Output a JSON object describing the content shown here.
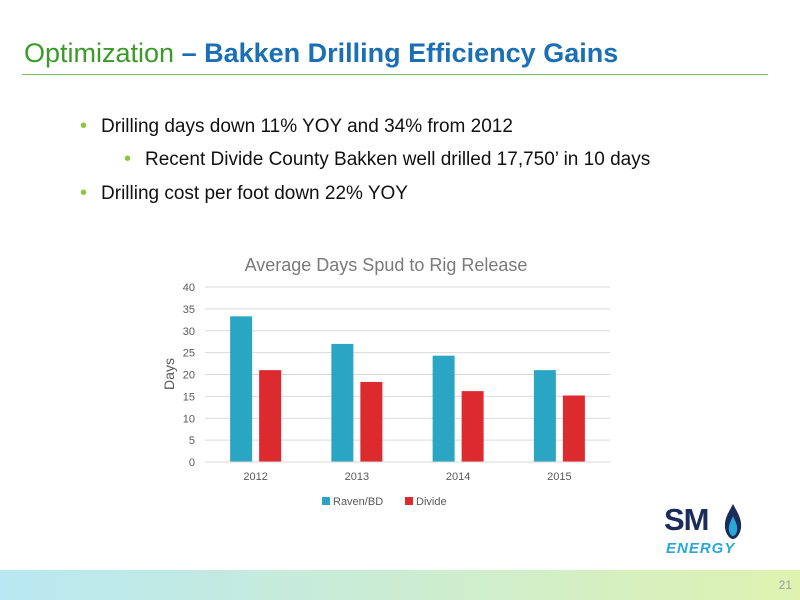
{
  "slide": {
    "title_part1": "Optimization",
    "title_part2": " – Bakken Drilling Efficiency Gains",
    "bullets": [
      "Drilling days down 11% YOY and 34% from 2012",
      "Recent Divide County Bakken well drilled 17,750’ in 10 days",
      "Drilling cost per foot down 22% YOY"
    ],
    "page_number": "21",
    "logo_line1": "SM",
    "logo_line2": "ENERGY",
    "bullet_glyph": "•"
  },
  "chart_data": {
    "type": "bar",
    "title": "Average Days Spud to Rig Release",
    "ylabel": "Days",
    "xlabel": "",
    "categories": [
      "2012",
      "2013",
      "2014",
      "2015"
    ],
    "series": [
      {
        "name": "Raven/BD",
        "values": [
          33.3,
          27.0,
          24.3,
          21.0
        ],
        "color": "#2aa6c4"
      },
      {
        "name": "Divide",
        "values": [
          21.0,
          18.3,
          16.2,
          15.2
        ],
        "color": "#dc2a2f"
      }
    ],
    "ylim": [
      0,
      40
    ],
    "yticks": [
      0,
      5,
      10,
      15,
      20,
      25,
      30,
      35,
      40
    ],
    "grid": true,
    "legend_position": "bottom"
  },
  "colors": {
    "title_green": "#3a9a2a",
    "title_blue": "#1a6fb5",
    "bullet_green": "#8cc63f"
  }
}
